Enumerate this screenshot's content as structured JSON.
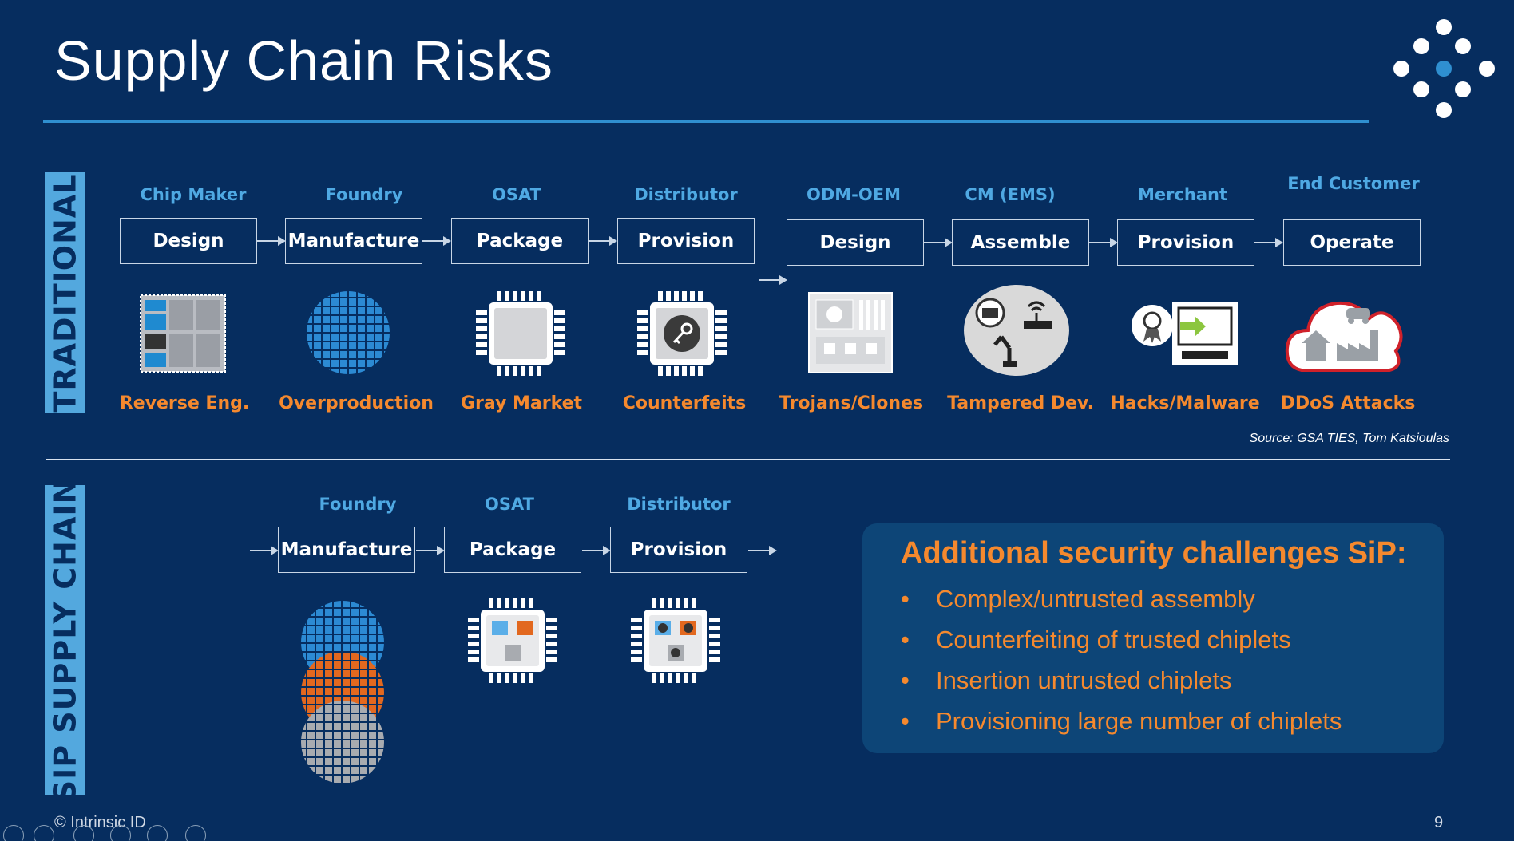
{
  "title": "Supply Chain Risks",
  "traditional": {
    "label": "TRADITIONAL",
    "stages": [
      {
        "role": "Chip Maker",
        "step": "Design",
        "risk": "Reverse Eng.",
        "icon": "chip-die-icon"
      },
      {
        "role": "Foundry",
        "step": "Manufacture",
        "risk": "Overproduction",
        "icon": "wafer-icon"
      },
      {
        "role": "OSAT",
        "step": "Package",
        "risk": "Gray Market",
        "icon": "packaged-chip-icon"
      },
      {
        "role": "Distributor",
        "step": "Provision",
        "risk": "Counterfeits",
        "icon": "key-chip-icon"
      },
      {
        "role": "ODM-OEM",
        "step": "Design",
        "risk": "Trojans/Clones",
        "icon": "circuit-board-icon"
      },
      {
        "role": "CM (EMS)",
        "step": "Assemble",
        "risk": "Tampered Dev.",
        "icon": "assembly-devices-icon"
      },
      {
        "role": "Merchant",
        "step": "Provision",
        "risk": "Hacks/Malware",
        "icon": "computer-certificate-icon"
      },
      {
        "role": "End Customer",
        "step": "Operate",
        "risk": "DDoS Attacks",
        "icon": "cloud-iot-icon"
      }
    ],
    "source": "Source: GSA TIES, Tom Katsioulas"
  },
  "sip": {
    "label": "SIP SUPPLY CHAIN",
    "stages": [
      {
        "role": "Foundry",
        "step": "Manufacture",
        "icon": "stacked-wafers-icon"
      },
      {
        "role": "OSAT",
        "step": "Package",
        "icon": "multi-die-chip-icon"
      },
      {
        "role": "Distributor",
        "step": "Provision",
        "icon": "multi-key-chip-icon"
      }
    ]
  },
  "callout": {
    "title": "Additional security challenges SiP:",
    "bullets": [
      "Complex/untrusted assembly",
      "Counterfeiting of trusted chiplets",
      "Insertion untrusted chiplets",
      "Provisioning large number of chiplets"
    ]
  },
  "footer": {
    "copyright": "© Intrinsic ID",
    "page": "9"
  },
  "colors": {
    "background": "#062d5f",
    "accent_blue": "#4fa9e3",
    "accent_orange": "#f5892e",
    "label_bar": "#53a8de"
  }
}
